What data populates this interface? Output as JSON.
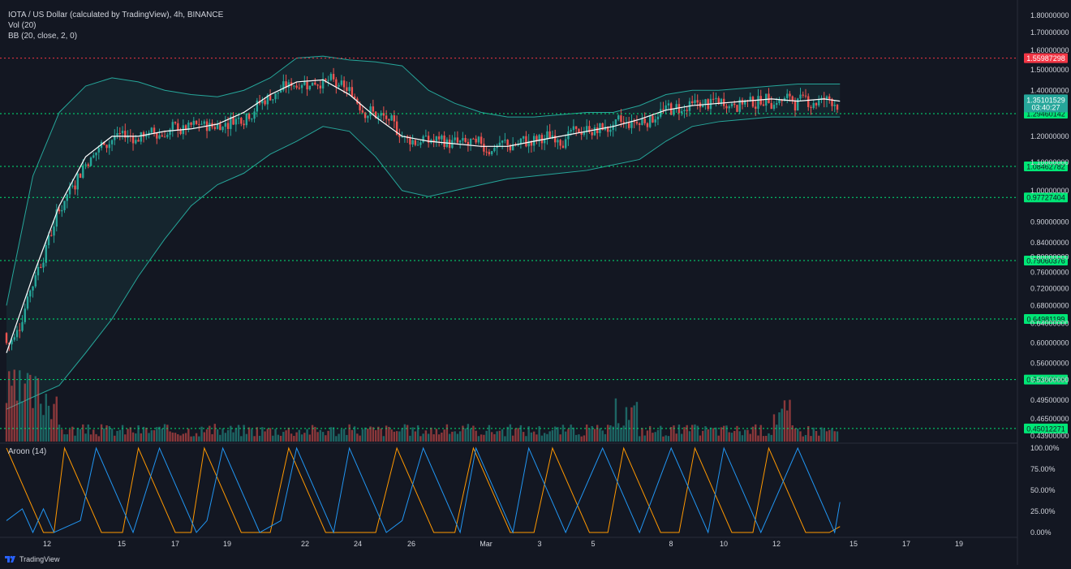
{
  "legend": {
    "title": "IOTA / US Dollar (calculated by TradingView), 4h, BINANCE",
    "vol": "Vol (20)",
    "bb": "BB (20, close, 2, 0)"
  },
  "aroon_title": "Aroon (14)",
  "footer": {
    "brand": "TradingView"
  },
  "colors": {
    "background": "#131722",
    "up": "#26a69a",
    "down": "#ef5350",
    "band": "#26a69a",
    "basis": "#ffffff",
    "support": "#00e676",
    "resistance": "#f23645",
    "aroon_up": "#ff9800",
    "aroon_down": "#2196f3",
    "axis_text": "#d1d4dc"
  },
  "chart_data": {
    "type": "candlestick",
    "symbol": "IOTA / US Dollar",
    "interval": "4h",
    "exchange": "BINANCE",
    "scale": "log",
    "price_axis_ticks": [
      "1.80000000",
      "1.70000000",
      "1.60000000",
      "1.50000000",
      "1.40000000",
      "1.20000000",
      "1.10000000",
      "1.00000000",
      "0.90000000",
      "0.84000000",
      "0.80000000",
      "0.76000000",
      "0.72000000",
      "0.68000000",
      "0.64000000",
      "0.60000000",
      "0.56000000",
      "0.53000000",
      "0.49500000",
      "0.46500000",
      "0.43900000"
    ],
    "x_axis_labels": [
      "12",
      "15",
      "17",
      "19",
      "22",
      "24",
      "26",
      "Mar",
      "3",
      "5",
      "8",
      "10",
      "12",
      "15",
      "17",
      "19"
    ],
    "horizontal_levels": [
      {
        "value": "1.55987298",
        "kind": "resistance"
      },
      {
        "value": "1.29460142",
        "kind": "support"
      },
      {
        "value": "1.08462782",
        "kind": "support"
      },
      {
        "value": "0.97727404",
        "kind": "support"
      },
      {
        "value": "0.79060376",
        "kind": "support"
      },
      {
        "value": "0.64981199",
        "kind": "support"
      },
      {
        "value": "0.53027538",
        "kind": "support"
      },
      {
        "value": "0.45012271",
        "kind": "support"
      }
    ],
    "last_price": {
      "value": "1.35101529",
      "countdown": "03:40:27"
    },
    "bollinger_band_path": [
      [
        0,
        0.68,
        0.48
      ],
      [
        10,
        1.05,
        0.5
      ],
      [
        20,
        1.3,
        0.52
      ],
      [
        30,
        1.42,
        0.58
      ],
      [
        40,
        1.46,
        0.65
      ],
      [
        50,
        1.44,
        0.75
      ],
      [
        60,
        1.4,
        0.85
      ],
      [
        70,
        1.38,
        0.95
      ],
      [
        80,
        1.37,
        1.02
      ],
      [
        90,
        1.4,
        1.06
      ],
      [
        100,
        1.46,
        1.13
      ],
      [
        110,
        1.56,
        1.18
      ],
      [
        120,
        1.57,
        1.24
      ],
      [
        130,
        1.55,
        1.22
      ],
      [
        140,
        1.54,
        1.12
      ],
      [
        150,
        1.52,
        1.0
      ],
      [
        160,
        1.4,
        0.98
      ],
      [
        170,
        1.34,
        1.0
      ],
      [
        180,
        1.3,
        1.02
      ],
      [
        190,
        1.28,
        1.04
      ],
      [
        200,
        1.28,
        1.05
      ],
      [
        210,
        1.29,
        1.06
      ],
      [
        220,
        1.3,
        1.07
      ],
      [
        230,
        1.3,
        1.09
      ],
      [
        240,
        1.33,
        1.11
      ],
      [
        250,
        1.38,
        1.18
      ],
      [
        260,
        1.4,
        1.24
      ],
      [
        270,
        1.4,
        1.26
      ],
      [
        280,
        1.41,
        1.27
      ],
      [
        290,
        1.42,
        1.28
      ],
      [
        300,
        1.43,
        1.28
      ],
      [
        310,
        1.43,
        1.28
      ],
      [
        316,
        1.43,
        1.28
      ]
    ],
    "basis_path": [
      [
        0,
        0.58
      ],
      [
        10,
        0.75
      ],
      [
        20,
        0.95
      ],
      [
        30,
        1.12
      ],
      [
        40,
        1.2
      ],
      [
        50,
        1.2
      ],
      [
        60,
        1.22
      ],
      [
        70,
        1.23
      ],
      [
        80,
        1.25
      ],
      [
        90,
        1.3
      ],
      [
        100,
        1.38
      ],
      [
        110,
        1.44
      ],
      [
        120,
        1.45
      ],
      [
        130,
        1.38
      ],
      [
        140,
        1.28
      ],
      [
        150,
        1.2
      ],
      [
        160,
        1.18
      ],
      [
        170,
        1.17
      ],
      [
        180,
        1.16
      ],
      [
        190,
        1.16
      ],
      [
        200,
        1.18
      ],
      [
        210,
        1.2
      ],
      [
        220,
        1.22
      ],
      [
        230,
        1.24
      ],
      [
        240,
        1.27
      ],
      [
        250,
        1.31
      ],
      [
        260,
        1.33
      ],
      [
        270,
        1.34
      ],
      [
        280,
        1.35
      ],
      [
        290,
        1.36
      ],
      [
        300,
        1.35
      ],
      [
        310,
        1.36
      ],
      [
        316,
        1.35
      ]
    ],
    "aroon_up_path": [
      [
        0,
        100
      ],
      [
        14,
        0
      ],
      [
        18,
        0
      ],
      [
        22,
        100
      ],
      [
        36,
        0
      ],
      [
        44,
        0
      ],
      [
        50,
        100
      ],
      [
        64,
        0
      ],
      [
        70,
        0
      ],
      [
        75,
        100
      ],
      [
        89,
        0
      ],
      [
        100,
        0
      ],
      [
        107,
        100
      ],
      [
        121,
        0
      ],
      [
        140,
        0
      ],
      [
        148,
        100
      ],
      [
        162,
        0
      ],
      [
        170,
        0
      ],
      [
        177,
        100
      ],
      [
        191,
        0
      ],
      [
        200,
        0
      ],
      [
        207,
        100
      ],
      [
        221,
        0
      ],
      [
        228,
        0
      ],
      [
        234,
        100
      ],
      [
        248,
        0
      ],
      [
        255,
        0
      ],
      [
        261,
        100
      ],
      [
        275,
        0
      ],
      [
        283,
        0
      ],
      [
        289,
        100
      ],
      [
        303,
        0
      ],
      [
        312,
        0
      ],
      [
        316,
        7
      ]
    ],
    "aroon_down_path": [
      [
        0,
        14
      ],
      [
        6,
        28
      ],
      [
        10,
        0
      ],
      [
        14,
        28
      ],
      [
        18,
        0
      ],
      [
        28,
        14
      ],
      [
        34,
        100
      ],
      [
        48,
        0
      ],
      [
        58,
        100
      ],
      [
        72,
        0
      ],
      [
        76,
        14
      ],
      [
        82,
        100
      ],
      [
        96,
        0
      ],
      [
        104,
        14
      ],
      [
        110,
        100
      ],
      [
        124,
        0
      ],
      [
        130,
        100
      ],
      [
        144,
        0
      ],
      [
        150,
        14
      ],
      [
        158,
        100
      ],
      [
        172,
        0
      ],
      [
        178,
        100
      ],
      [
        192,
        0
      ],
      [
        198,
        100
      ],
      [
        212,
        0
      ],
      [
        226,
        100
      ],
      [
        240,
        0
      ],
      [
        252,
        100
      ],
      [
        266,
        0
      ],
      [
        272,
        100
      ],
      [
        286,
        0
      ],
      [
        300,
        100
      ],
      [
        314,
        0
      ],
      [
        316,
        36
      ]
    ],
    "aroon_axis": [
      "100.00%",
      "75.00%",
      "50.00%",
      "25.00%",
      "0.00%"
    ]
  }
}
